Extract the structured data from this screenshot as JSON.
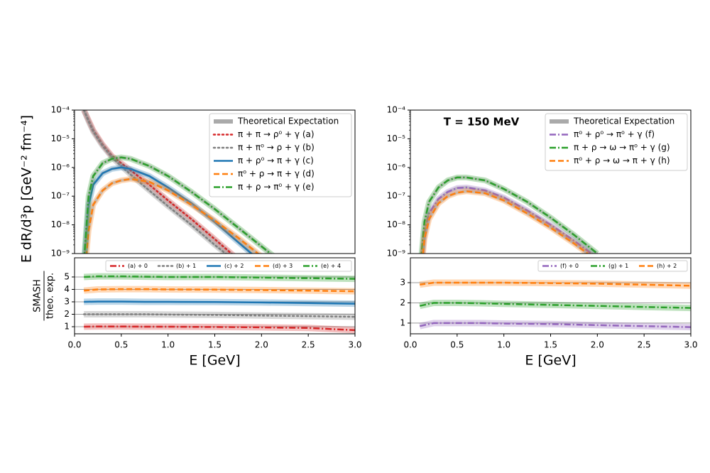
{
  "chart_data": [
    {
      "type": "line",
      "yscale": "log",
      "legend": "upper right",
      "reference_label": "Theoretical Expectation",
      "ylabel": "E dR/d³p   [GeV⁻² fm⁻⁴]",
      "xlim": [
        0,
        3
      ],
      "ylim": [
        1e-09,
        0.0001
      ],
      "yticks": [
        {
          "value": 1e-09,
          "label": "10⁻⁹"
        },
        {
          "value": 1e-08,
          "label": "10⁻⁸"
        },
        {
          "value": 1e-07,
          "label": "10⁻⁷"
        },
        {
          "value": 1e-06,
          "label": "10⁻⁶"
        },
        {
          "value": 1e-05,
          "label": "10⁻⁵"
        },
        {
          "value": 0.0001,
          "label": "10⁻⁴"
        }
      ],
      "x": [
        0.1,
        0.15,
        0.2,
        0.3,
        0.4,
        0.5,
        0.6,
        0.8,
        1.0,
        1.25,
        1.5,
        1.75,
        2.0,
        2.25,
        2.5
      ],
      "series": [
        {
          "name": "π + π → ρ⁰ + γ    (a)",
          "color": "#d62728",
          "linestyle": "dotted",
          "values": [
            0.0001,
            4.47e-05,
            2e-05,
            6.31e-06,
            2.51e-06,
            1.41e-06,
            7.94e-07,
            2.51e-07,
            7.08e-08,
            1.58e-08,
            3.16e-09,
            6.31e-10,
            null,
            null,
            null
          ]
        },
        {
          "name": "π + π⁰ → ρ + γ    (b)",
          "color": "#7f7f7f",
          "linestyle": "dotted",
          "values": [
            0.0001,
            3.98e-05,
            1.78e-05,
            5.62e-06,
            2.24e-06,
            1.12e-06,
            5.62e-07,
            1.58e-07,
            4.47e-08,
            1e-08,
            2e-09,
            4.47e-10,
            null,
            null,
            null
          ]
        },
        {
          "name": "π + ρ⁰ → π + γ    (c)",
          "color": "#1f77b4",
          "linestyle": "solid",
          "values": [
            3.16e-10,
            5.01e-08,
            2.51e-07,
            6.31e-07,
            8.91e-07,
            1e-06,
            8.91e-07,
            5.01e-07,
            2e-07,
            5.62e-08,
            1.26e-08,
            2.51e-09,
            5.01e-10,
            null,
            null
          ]
        },
        {
          "name": "π⁰ + ρ → π + γ    (d)",
          "color": "#ff7f0e",
          "linestyle": "dashed",
          "values": [
            1e-10,
            6.31e-09,
            5.01e-08,
            1.58e-07,
            2.82e-07,
            3.55e-07,
            3.98e-07,
            3.16e-07,
            1.58e-07,
            5.01e-08,
            1.41e-08,
            3.55e-09,
            7.94e-10,
            null,
            null
          ]
        },
        {
          "name": "π + ρ → π⁰ + γ    (e)",
          "color": "#2ca02c",
          "linestyle": "dashdot",
          "values": [
            5.01e-10,
            1e-07,
            5.01e-07,
            1.41e-06,
            2e-06,
            2.24e-06,
            2e-06,
            1.12e-06,
            5.01e-07,
            1.41e-07,
            3.55e-08,
            7.94e-09,
            1.78e-09,
            3.98e-10,
            null
          ]
        }
      ]
    },
    {
      "type": "line",
      "legend": "upper center",
      "reference_lines": true,
      "ylabel": [
        "SMASH",
        "theo. exp."
      ],
      "xlabel": "E   [GeV]",
      "xlim": [
        0,
        3
      ],
      "ylim": [
        0.43,
        6.54
      ],
      "xticks": [
        {
          "value": 0,
          "label": "0.0"
        },
        {
          "value": 0.5,
          "label": "0.5"
        },
        {
          "value": 1,
          "label": "1.0"
        },
        {
          "value": 1.5,
          "label": "1.5"
        },
        {
          "value": 2,
          "label": "2.0"
        },
        {
          "value": 2.5,
          "label": "2.5"
        },
        {
          "value": 3,
          "label": "3.0"
        }
      ],
      "yticks": [
        1,
        2,
        3,
        4,
        5
      ],
      "x": [
        0.1,
        0.25,
        0.5,
        0.75,
        1.0,
        1.5,
        2.0,
        2.5,
        3.0
      ],
      "series": [
        {
          "name": "(a) + 0",
          "color": "#d62728",
          "linestyle": "dashdot",
          "values": [
            1.0,
            1.02,
            1.02,
            1.0,
            1.0,
            0.98,
            0.95,
            0.9,
            0.72
          ]
        },
        {
          "name": "(b) + 1",
          "color": "#7f7f7f",
          "linestyle": "dotted",
          "values": [
            2.0,
            2.0,
            2.0,
            2.0,
            1.98,
            1.95,
            1.9,
            1.85,
            1.8
          ]
        },
        {
          "name": "(c) + 2",
          "color": "#1f77b4",
          "linestyle": "solid",
          "values": [
            3.0,
            3.02,
            3.02,
            3.0,
            3.0,
            2.98,
            2.95,
            2.9,
            2.85
          ]
        },
        {
          "name": "(d) + 3",
          "color": "#ff7f0e",
          "linestyle": "dashed",
          "values": [
            3.9,
            4.0,
            4.02,
            4.02,
            4.0,
            3.98,
            3.95,
            3.9,
            3.85
          ]
        },
        {
          "name": "(e) + 4",
          "color": "#2ca02c",
          "linestyle": "dashdot",
          "values": [
            5.0,
            5.05,
            5.05,
            5.02,
            5.0,
            5.0,
            4.95,
            4.9,
            4.85
          ]
        }
      ]
    },
    {
      "type": "line",
      "yscale": "log",
      "legend": "upper right",
      "reference_label": "Theoretical Expectation",
      "annotation": "T = 150 MeV",
      "xlim": [
        0,
        3
      ],
      "ylim": [
        1e-09,
        0.0001
      ],
      "yticks": [
        {
          "value": 1e-09,
          "label": "10⁻⁹"
        },
        {
          "value": 1e-08,
          "label": "10⁻⁸"
        },
        {
          "value": 1e-07,
          "label": "10⁻⁷"
        },
        {
          "value": 1e-06,
          "label": "10⁻⁶"
        },
        {
          "value": 1e-05,
          "label": "10⁻⁵"
        },
        {
          "value": 0.0001,
          "label": "10⁻⁴"
        }
      ],
      "x": [
        0.1,
        0.15,
        0.2,
        0.3,
        0.4,
        0.5,
        0.6,
        0.8,
        1.0,
        1.25,
        1.5,
        1.75,
        2.0
      ],
      "series": [
        {
          "name": "π⁰ + ρ⁰ → π⁰ + γ    (f)",
          "color": "#9467bd",
          "linestyle": "dashdot",
          "values": [
            1e-10,
            5.01e-09,
            2.51e-08,
            7.94e-08,
            1.41e-07,
            1.91e-07,
            2e-07,
            1.58e-07,
            8.91e-08,
            3.16e-08,
            1e-08,
            2.82e-09,
            7.08e-10
          ]
        },
        {
          "name": "π + ρ → ω → π⁰ + γ    (g)",
          "color": "#2ca02c",
          "linestyle": "dashdot",
          "values": [
            2e-10,
            1.26e-08,
            6.31e-08,
            2e-07,
            3.55e-07,
            4.47e-07,
            4.47e-07,
            3.55e-07,
            1.78e-07,
            6.31e-08,
            1.78e-08,
            4.47e-09,
            1e-09
          ]
        },
        {
          "name": "π⁰ + ρ → ω → π + γ    (h)",
          "color": "#ff7f0e",
          "linestyle": "dashed",
          "values": [
            6.31e-11,
            3.16e-09,
            1.58e-08,
            5.62e-08,
            1e-07,
            1.32e-07,
            1.48e-07,
            1.26e-07,
            7.08e-08,
            2.51e-08,
            7.94e-09,
            2.24e-09,
            5.62e-10
          ]
        }
      ]
    },
    {
      "type": "line",
      "legend": "upper center",
      "reference_lines": true,
      "xlabel": "E   [GeV]",
      "xlim": [
        0,
        3
      ],
      "ylim": [
        0.47,
        4.23
      ],
      "xticks": [
        {
          "value": 0,
          "label": "0.0"
        },
        {
          "value": 0.5,
          "label": "0.5"
        },
        {
          "value": 1,
          "label": "1.0"
        },
        {
          "value": 1.5,
          "label": "1.5"
        },
        {
          "value": 2,
          "label": "2.0"
        },
        {
          "value": 2.5,
          "label": "2.5"
        },
        {
          "value": 3,
          "label": "3.0"
        }
      ],
      "yticks": [
        1,
        2,
        3
      ],
      "x": [
        0.1,
        0.25,
        0.5,
        0.75,
        1.0,
        1.5,
        2.0,
        2.5,
        3.0
      ],
      "series": [
        {
          "name": "(f) + 0",
          "color": "#9467bd",
          "linestyle": "dashdot",
          "values": [
            0.85,
            1.0,
            1.0,
            1.0,
            0.98,
            0.95,
            0.9,
            0.85,
            0.8
          ]
        },
        {
          "name": "(g) + 1",
          "color": "#2ca02c",
          "linestyle": "dashdot",
          "values": [
            1.85,
            2.0,
            2.0,
            1.98,
            1.95,
            1.9,
            1.85,
            1.8,
            1.75
          ]
        },
        {
          "name": "(h) + 2",
          "color": "#ff7f0e",
          "linestyle": "dashed",
          "values": [
            2.9,
            3.0,
            3.0,
            3.0,
            3.0,
            2.98,
            2.95,
            2.9,
            2.85
          ]
        }
      ]
    }
  ]
}
